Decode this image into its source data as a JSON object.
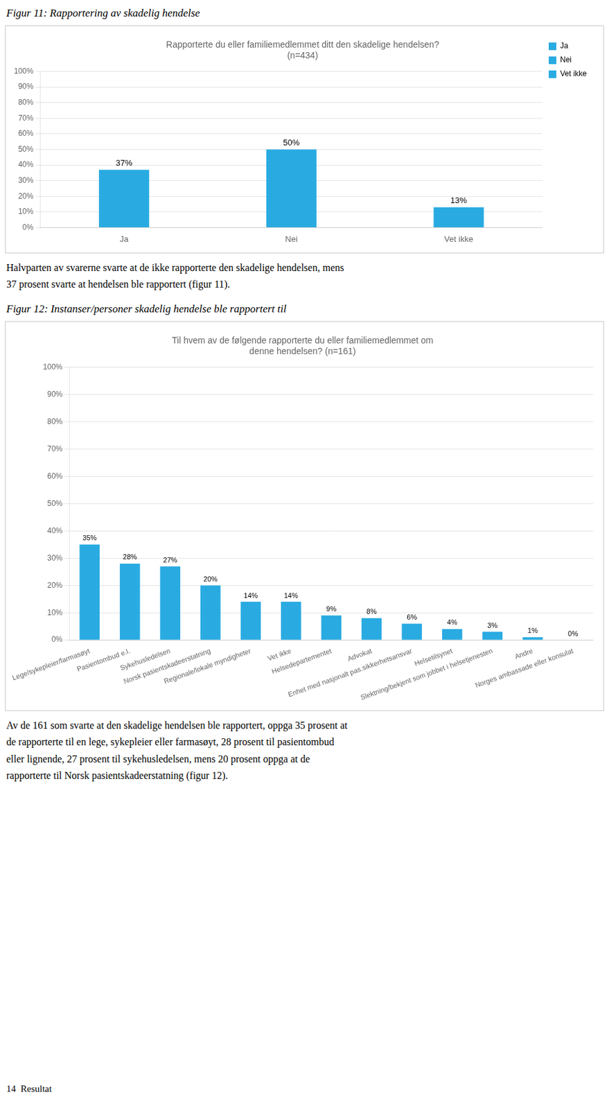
{
  "chart_data": [
    {
      "type": "bar",
      "heading": "Figur 11: Rapportering av skadelig hendelse",
      "title": [
        "Rapporterte du eller familiemedlemmet ditt den skadelige hendelsen?",
        "(n=434)"
      ],
      "categories": [
        "Ja",
        "Nei",
        "Vet ikke"
      ],
      "values": [
        37,
        50,
        13
      ],
      "value_labels": [
        "37%",
        "50%",
        "13%"
      ],
      "data_labels": true,
      "color": "#29ABE2",
      "ylim": [
        0,
        100
      ],
      "yticks": [
        {
          "value": 0,
          "label": "0%"
        },
        {
          "value": 10,
          "label": "10%"
        },
        {
          "value": 20,
          "label": "20%"
        },
        {
          "value": 30,
          "label": "30%"
        },
        {
          "value": 40,
          "label": "40%"
        },
        {
          "value": 50,
          "label": "50%"
        },
        {
          "value": 60,
          "label": "60%"
        },
        {
          "value": 70,
          "label": "70%"
        },
        {
          "value": 80,
          "label": "80%"
        },
        {
          "value": 90,
          "label": "90%"
        },
        {
          "value": 100,
          "label": "100%"
        }
      ],
      "grid": true,
      "legend": "upper right",
      "legend_labels": [
        "Ja",
        "Nei",
        "Vet ikke"
      ],
      "body_text": [
        "Halvparten av svarerne svarte at de ikke rapporterte den skadelige hendelsen, mens",
        "37 prosent svarte at hendelsen ble rapportert (figur 11)."
      ]
    },
    {
      "type": "bar",
      "heading": "Figur 12: Instanser/personer skadelig hendelse ble rapportert til",
      "title": [
        "Til hvem av de følgende rapporterte du eller familiemedlemmet om",
        "denne hendelsen? (n=161)"
      ],
      "categories": [
        "Lege/sykepleier/farmasøyt",
        "Pasientombud e.l.",
        "Sykehusledelsen",
        "Norsk pasientskadeerstatning",
        "Regionale/lokale myndigheter",
        "Vet ikke",
        "Helsedepartementet",
        "Advokat",
        "Enhet med nasjonalt pas.sikkerhetsansvar",
        "Helsetilsynet",
        "Slektning/bekjent som jobbet i helsetjenesten",
        "Andre",
        "Norges ambassade eller konsulat"
      ],
      "values": [
        35,
        28,
        27,
        20,
        14,
        14,
        9,
        8,
        6,
        4,
        3,
        1,
        0
      ],
      "value_labels": [
        "35%",
        "28%",
        "27%",
        "20%",
        "14%",
        "14%",
        "9%",
        "8%",
        "6%",
        "4%",
        "3%",
        "1%",
        "0%"
      ],
      "data_labels": true,
      "color": "#29ABE2",
      "ylim": [
        0,
        100
      ],
      "yticks": [
        {
          "value": 0,
          "label": "0%"
        },
        {
          "value": 10,
          "label": "10%"
        },
        {
          "value": 20,
          "label": "20%"
        },
        {
          "value": 30,
          "label": "30%"
        },
        {
          "value": 40,
          "label": "40%"
        },
        {
          "value": 50,
          "label": "50%"
        },
        {
          "value": 60,
          "label": "60%"
        },
        {
          "value": 70,
          "label": "70%"
        },
        {
          "value": 80,
          "label": "80%"
        },
        {
          "value": 90,
          "label": "90%"
        },
        {
          "value": 100,
          "label": "100%"
        }
      ],
      "grid": true,
      "body_text": [
        "Av de 161 som svarte at den skadelige hendelsen ble rapportert, oppga 35 prosent at",
        "de rapporterte til en lege, sykepleier eller farmasøyt, 28 prosent til pasientombud",
        "eller lignende, 27 prosent til sykehusledelsen, mens 20 prosent oppga at de",
        "rapporterte til Norsk pasientskadeerstatning (figur 12)."
      ]
    }
  ],
  "footer": "14  Resultat"
}
